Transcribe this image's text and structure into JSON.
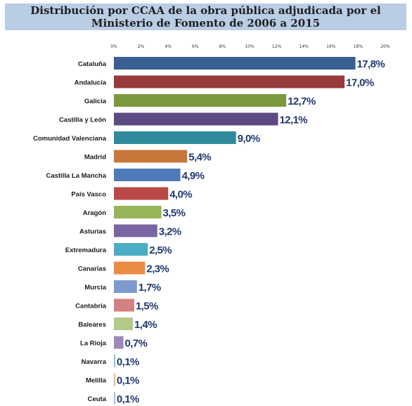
{
  "title": {
    "line1": "Distribución por CCAA de la obra pública adjudicada por el",
    "line2": "Ministerio de Fomento de 2006 a 2015"
  },
  "chart_data": {
    "type": "bar",
    "orientation": "horizontal",
    "title": "Distribución por CCAA de la obra pública adjudicada por el Ministerio de Fomento de 2006 a 2015",
    "xlim": [
      0,
      20
    ],
    "x_ticks": [
      "0%",
      "2%",
      "4%",
      "6%",
      "8%",
      "10%",
      "12%",
      "14%",
      "16%",
      "18%",
      "20%"
    ],
    "grid": false,
    "categories": [
      "Cataluña",
      "Andalucía",
      "Galicia",
      "Castilla y León",
      "Comunidad Valenciana",
      "Madrid",
      "Castilla La Mancha",
      "País Vasco",
      "Aragón",
      "Asturias",
      "Extremadura",
      "Canarias",
      "Murcia",
      "Cantabria",
      "Baleares",
      "La Rioja",
      "Navarra",
      "Melilla",
      "Ceuta"
    ],
    "values": [
      17.8,
      17.0,
      12.7,
      12.1,
      9.0,
      5.4,
      4.9,
      4.0,
      3.5,
      3.2,
      2.5,
      2.3,
      1.7,
      1.5,
      1.4,
      0.7,
      0.1,
      0.1,
      0.1
    ],
    "data_labels": [
      "17,8%",
      "17,0%",
      "12,7%",
      "12,1%",
      "9,0%",
      "5,4%",
      "4,9%",
      "4,0%",
      "3,5%",
      "3,2%",
      "2,5%",
      "2,3%",
      "1,7%",
      "1,5%",
      "1,4%",
      "0,7%",
      "0,1%",
      "0,1%",
      "0,1%"
    ],
    "colors": [
      "#3a5f93",
      "#963a3b",
      "#7b9a3d",
      "#5e4a82",
      "#318a9b",
      "#c8773a",
      "#4e7ab8",
      "#b94a48",
      "#96b657",
      "#7b64a3",
      "#4aacc5",
      "#ec8b44",
      "#7d9acc",
      "#d28080",
      "#b2c98a",
      "#9d88bb",
      "#7ec6d9",
      "#f4ae7e",
      "#a9bbe0"
    ],
    "label_color": "#1f3a6e"
  }
}
